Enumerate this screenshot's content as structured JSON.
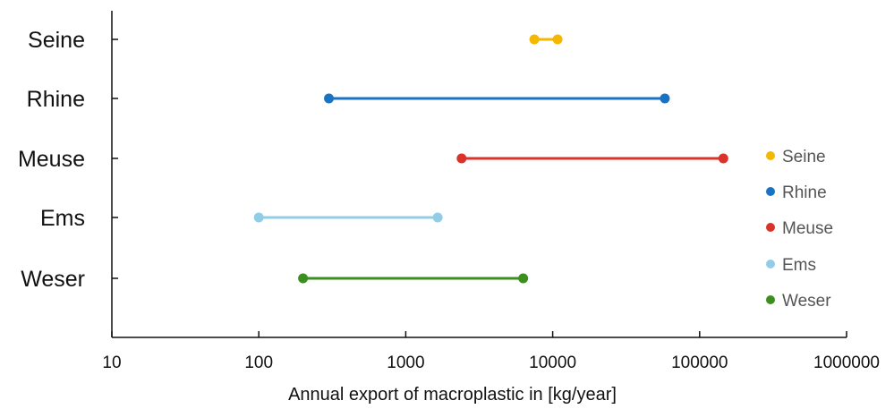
{
  "chart_data": {
    "type": "range",
    "title": "",
    "xlabel": "Annual export of macroplastic in [kg/year]",
    "ylabel": "",
    "xscale": "log",
    "xlim": [
      10,
      1000000
    ],
    "xticks": [
      10,
      100,
      1000,
      10000,
      100000,
      1000000
    ],
    "xtick_labels": [
      "10",
      "100",
      "1000",
      "10000",
      "100000",
      "1000000"
    ],
    "categories": [
      "Seine",
      "Rhine",
      "Meuse",
      "Ems",
      "Weser"
    ],
    "series": [
      {
        "name": "Seine",
        "min": 7500,
        "max": 10800,
        "color": "#f5b800"
      },
      {
        "name": "Rhine",
        "min": 300,
        "max": 58000,
        "color": "#1a73c2"
      },
      {
        "name": "Meuse",
        "min": 2400,
        "max": 145000,
        "color": "#d9332a"
      },
      {
        "name": "Ems",
        "min": 100,
        "max": 1650,
        "color": "#92cde8"
      },
      {
        "name": "Weser",
        "min": 200,
        "max": 6300,
        "color": "#3a8f1e"
      }
    ],
    "grid": false,
    "legend_position": "right"
  }
}
